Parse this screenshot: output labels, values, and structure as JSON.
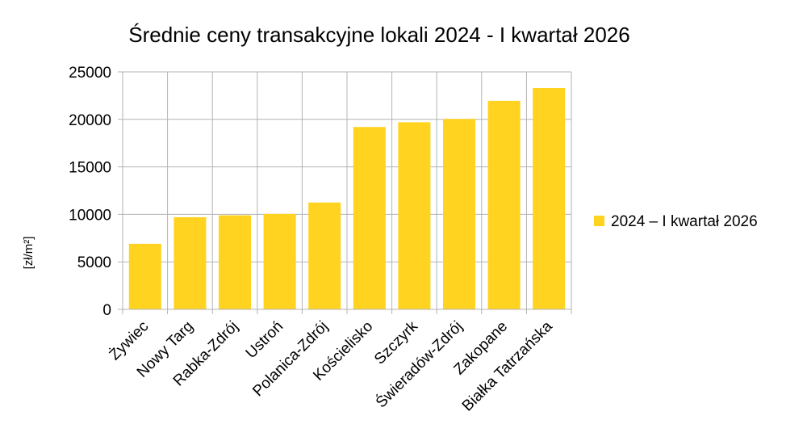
{
  "chart_data": {
    "type": "bar",
    "title": "Średnie ceny transakcyjne lokali 2024 - I kwartał 2026",
    "xlabel": "",
    "ylabel": "[zł/m²]",
    "ylim": [
      0,
      25000
    ],
    "yticks": [
      0,
      5000,
      10000,
      15000,
      20000,
      25000
    ],
    "grid": true,
    "legend_position": "right",
    "categories": [
      "Żywiec",
      "Nowy Targ",
      "Rabka-Zdrój",
      "Ustroń",
      "Polanica-Zdrój",
      "Kościelisko",
      "Szczyrk",
      "Świeradów-Zdrój",
      "Zakopane",
      "Białka Tatrzańska"
    ],
    "series": [
      {
        "name": "2024 – I kwartał 2026",
        "color": "#FFD320",
        "values": [
          6900,
          9700,
          9900,
          10050,
          11250,
          19200,
          19700,
          20050,
          21950,
          23300
        ]
      }
    ]
  }
}
